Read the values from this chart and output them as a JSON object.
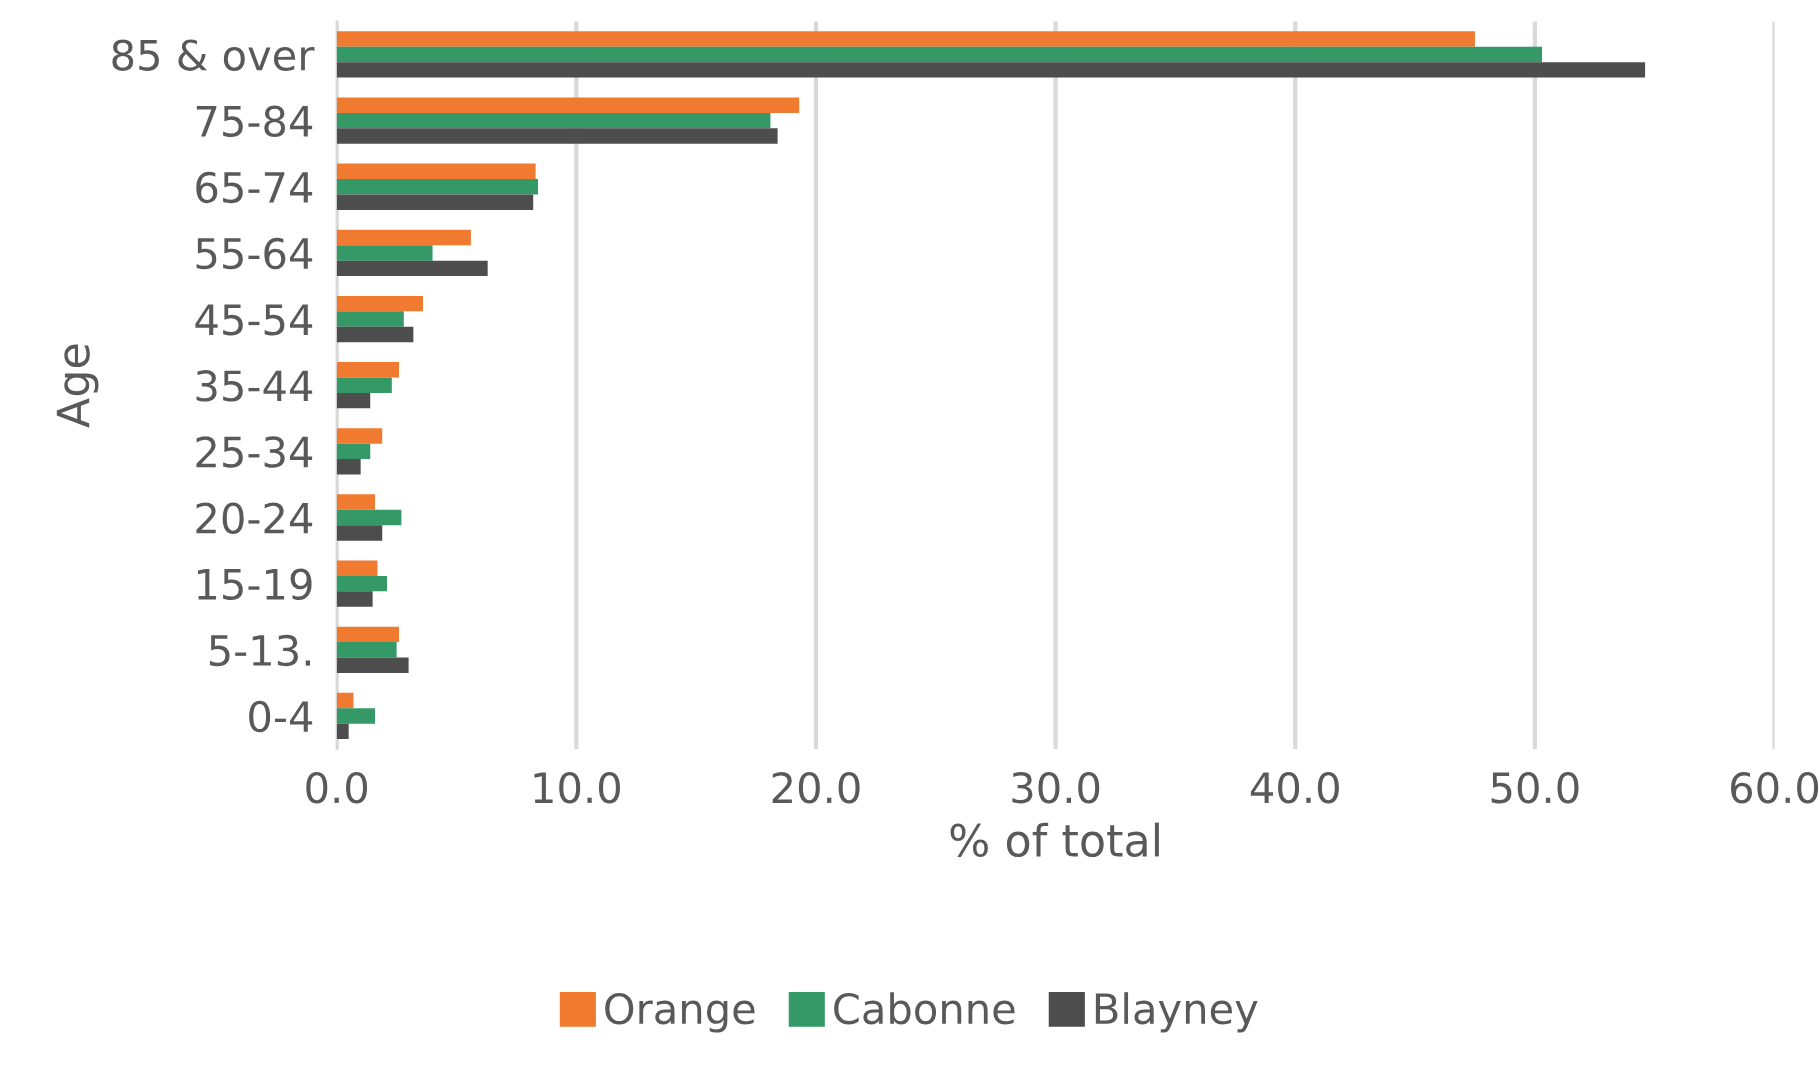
{
  "chart_data": {
    "type": "bar",
    "orientation": "horizontal",
    "xlabel": "% of total",
    "ylabel": "Age",
    "categories": [
      "85 & over",
      "75-84",
      "65-74",
      "55-64",
      "45-54",
      "35-44",
      "25-34",
      "20-24",
      "15-19",
      "5-13.",
      "0-4"
    ],
    "series": [
      {
        "name": "Orange",
        "color": "#f07a30",
        "values": [
          47.5,
          19.3,
          8.3,
          5.6,
          3.6,
          2.6,
          1.9,
          1.6,
          1.7,
          2.6,
          0.7
        ]
      },
      {
        "name": "Cabonne",
        "color": "#349966",
        "values": [
          50.3,
          18.1,
          8.4,
          4.0,
          2.8,
          2.3,
          1.4,
          2.7,
          2.1,
          2.5,
          1.6
        ]
      },
      {
        "name": "Blayney",
        "color": "#4d4d4d",
        "values": [
          54.6,
          18.4,
          8.2,
          6.3,
          3.2,
          1.4,
          1.0,
          1.9,
          1.5,
          3.0,
          0.5
        ]
      }
    ],
    "xlim": [
      0,
      60
    ],
    "xticks": [
      {
        "value": 0,
        "label": "0.0"
      },
      {
        "value": 10,
        "label": "10.0"
      },
      {
        "value": 20,
        "label": "20.0"
      },
      {
        "value": 30,
        "label": "30.0"
      },
      {
        "value": 40,
        "label": "40.0"
      },
      {
        "value": 50,
        "label": "50.0"
      },
      {
        "value": 60,
        "label": "60.0"
      }
    ],
    "grid": "x",
    "legend": "bottom"
  }
}
